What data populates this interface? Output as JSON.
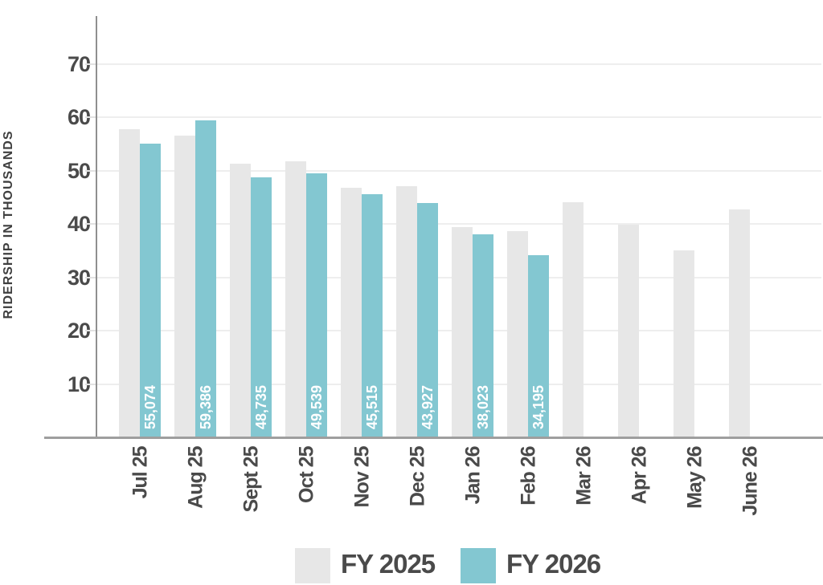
{
  "figure": {
    "background": "#ffffff"
  },
  "axes": {
    "y_title": "RIDERSHIP IN THOUSANDS",
    "y_ticks": [
      10,
      20,
      30,
      40,
      50,
      60,
      70
    ]
  },
  "legend": {
    "items": [
      {
        "label": "FY 2025",
        "color": "#e7e7e7"
      },
      {
        "label": "FY 2026",
        "color": "#83c7d1"
      }
    ]
  },
  "colors": {
    "fy2025_bar": "#e7e7e7",
    "fy2026_bar": "#83c7d1",
    "grid_line": "#eeeeee",
    "axis_line": "#9e9e9e",
    "text": "#4a4a4a",
    "bar_value_text": "#ffffff"
  },
  "chart_data": {
    "type": "bar",
    "title": "",
    "xlabel": "",
    "ylabel": "RIDERSHIP IN THOUSANDS",
    "categories": [
      "Jul 25",
      "Aug 25",
      "Sept 25",
      "Oct 25",
      "Nov 25",
      "Dec 25",
      "Jan 26",
      "Feb 26",
      "Mar 26",
      "Apr 26",
      "May 26",
      "June 26"
    ],
    "series": [
      {
        "name": "FY 2025",
        "color": "#e7e7e7",
        "values": [
          57.8,
          56.5,
          51.3,
          51.8,
          46.8,
          47.0,
          39.4,
          38.7,
          44.1,
          39.9,
          35.0,
          42.7
        ]
      },
      {
        "name": "FY 2026",
        "color": "#83c7d1",
        "values": [
          55.074,
          59.386,
          48.735,
          49.539,
          45.515,
          43.927,
          38.023,
          34.195,
          null,
          null,
          null,
          null
        ],
        "labels": [
          "55,074",
          "59,386",
          "48,735",
          "49,539",
          "45,515",
          "43,927",
          "38,023",
          "34,195",
          null,
          null,
          null,
          null
        ]
      }
    ],
    "yticks": [
      10,
      20,
      30,
      40,
      50,
      60,
      70
    ],
    "ylim": [
      0,
      78
    ],
    "grid": true,
    "legend_position": "bottom"
  }
}
